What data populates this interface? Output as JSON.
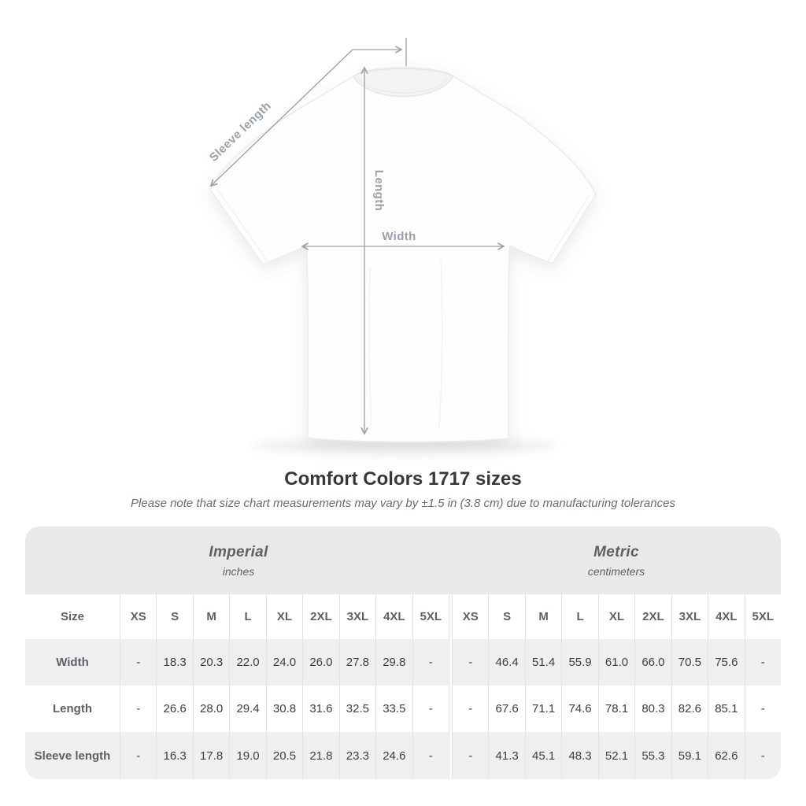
{
  "title": "Comfort Colors 1717 sizes",
  "subtitle": "Please note that size chart measurements may vary by ±1.5 in (3.8 cm) due to manufacturing tolerances",
  "diagram": {
    "labels": {
      "sleeve": "Sleeve length",
      "length": "Length",
      "width": "Width"
    },
    "annotation_color": "#9aa1a8"
  },
  "colors": {
    "band_background": "#e9e9ea",
    "alt_row_background": "#efeff0",
    "separator": "#e2e2e4",
    "title_text": "#35393f",
    "muted_text": "#5c6167",
    "value_text": "#3b3e43",
    "annotation": "#9aa1a8"
  },
  "table": {
    "size_header": "Size",
    "sizes": [
      "XS",
      "S",
      "M",
      "L",
      "XL",
      "2XL",
      "3XL",
      "4XL",
      "5XL"
    ],
    "unit_groups": [
      {
        "label": "Imperial",
        "sublabel": "inches"
      },
      {
        "label": "Metric",
        "sublabel": "centimeters"
      }
    ],
    "rows": [
      {
        "label": "Width",
        "imperial": [
          "-",
          "18.3",
          "20.3",
          "22.0",
          "24.0",
          "26.0",
          "27.8",
          "29.8",
          "-"
        ],
        "metric": [
          "-",
          "46.4",
          "51.4",
          "55.9",
          "61.0",
          "66.0",
          "70.5",
          "75.6",
          "-"
        ]
      },
      {
        "label": "Length",
        "imperial": [
          "-",
          "26.6",
          "28.0",
          "29.4",
          "30.8",
          "31.6",
          "32.5",
          "33.5",
          "-"
        ],
        "metric": [
          "-",
          "67.6",
          "71.1",
          "74.6",
          "78.1",
          "80.3",
          "82.6",
          "85.1",
          "-"
        ]
      },
      {
        "label": "Sleeve length",
        "imperial": [
          "-",
          "16.3",
          "17.8",
          "19.0",
          "20.5",
          "21.8",
          "23.3",
          "24.6",
          "-"
        ],
        "metric": [
          "-",
          "41.3",
          "45.1",
          "48.3",
          "52.1",
          "55.3",
          "59.1",
          "62.6",
          "-"
        ]
      }
    ]
  },
  "chart_data": {
    "type": "table",
    "title": "Comfort Colors 1717 sizes",
    "note": "Size chart measurements may vary by ±1.5 in (3.8 cm) due to manufacturing tolerances",
    "categories": [
      "XS",
      "S",
      "M",
      "L",
      "XL",
      "2XL",
      "3XL",
      "4XL",
      "5XL"
    ],
    "series": [
      {
        "name": "Width (inches)",
        "values": [
          null,
          18.3,
          20.3,
          22.0,
          24.0,
          26.0,
          27.8,
          29.8,
          null
        ]
      },
      {
        "name": "Length (inches)",
        "values": [
          null,
          26.6,
          28.0,
          29.4,
          30.8,
          31.6,
          32.5,
          33.5,
          null
        ]
      },
      {
        "name": "Sleeve length (inches)",
        "values": [
          null,
          16.3,
          17.8,
          19.0,
          20.5,
          21.8,
          23.3,
          24.6,
          null
        ]
      },
      {
        "name": "Width (centimeters)",
        "values": [
          null,
          46.4,
          51.4,
          55.9,
          61.0,
          66.0,
          70.5,
          75.6,
          null
        ]
      },
      {
        "name": "Length (centimeters)",
        "values": [
          null,
          67.6,
          71.1,
          74.6,
          78.1,
          80.3,
          82.6,
          85.1,
          null
        ]
      },
      {
        "name": "Sleeve length (centimeters)",
        "values": [
          null,
          41.3,
          45.1,
          48.3,
          52.1,
          55.3,
          59.1,
          62.6,
          null
        ]
      }
    ]
  }
}
